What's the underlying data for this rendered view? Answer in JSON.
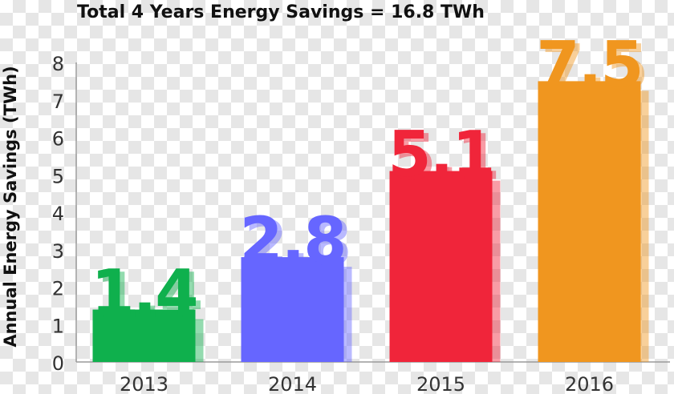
{
  "chart_data": {
    "type": "bar",
    "title": "Total 4 Years Energy Savings = 16.8 TWh",
    "ylabel": "Annual Energy Savings (TWh)",
    "xlabel": "",
    "ylim": [
      0,
      8
    ],
    "yticks": [
      0,
      1,
      2,
      3,
      4,
      5,
      6,
      7,
      8
    ],
    "categories": [
      "2013",
      "2014",
      "2015",
      "2016"
    ],
    "values": [
      1.4,
      2.8,
      5.1,
      7.5
    ],
    "data_labels": [
      "1.4",
      "2.8",
      "5.1",
      "7.5"
    ],
    "colors": [
      "#0fb04d",
      "#6666ff",
      "#f0253a",
      "#f0961f"
    ],
    "grid": false,
    "legend": "none"
  }
}
